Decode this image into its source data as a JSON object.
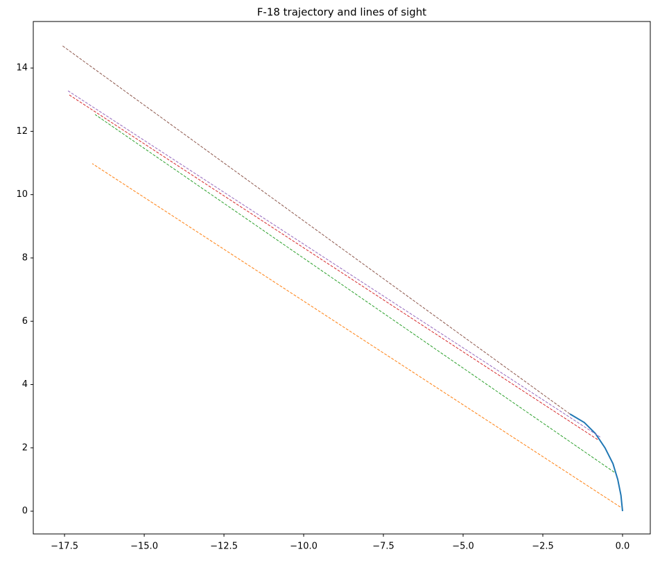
{
  "chart_data": {
    "type": "line",
    "title": "F-18 trajectory and lines of sight",
    "xlim": [
      -18.48,
      0.87
    ],
    "ylim": [
      -0.72,
      15.47
    ],
    "xticks": [
      {
        "value": -17.5,
        "label": "−17.5"
      },
      {
        "value": -15,
        "label": "−15.0"
      },
      {
        "value": -12.5,
        "label": "−12.5"
      },
      {
        "value": -10,
        "label": "−10.0"
      },
      {
        "value": -7.5,
        "label": "−7.5"
      },
      {
        "value": -5,
        "label": "−5.0"
      },
      {
        "value": -2.5,
        "label": "−2.5"
      },
      {
        "value": 0,
        "label": "0.0"
      }
    ],
    "yticks": [
      0,
      2,
      4,
      6,
      8,
      10,
      12,
      14
    ],
    "series": [
      {
        "color": "#1f77b4",
        "dashed": false,
        "x": [
          0,
          -0.05,
          -0.15,
          -0.3,
          -0.55,
          -0.85,
          -1.2,
          -1.65
        ],
        "values": [
          0,
          0.5,
          1.0,
          1.5,
          2.0,
          2.45,
          2.8,
          3.07
        ]
      },
      {
        "color": "#ff7f0e",
        "dashed": true,
        "x": [
          -0.07,
          -16.63
        ],
        "values": [
          0.13,
          10.98
        ]
      },
      {
        "color": "#2ca02c",
        "dashed": true,
        "x": [
          -0.26,
          -16.54
        ],
        "values": [
          1.23,
          12.53
        ]
      },
      {
        "color": "#d62728",
        "dashed": true,
        "x": [
          -0.78,
          -17.35
        ],
        "values": [
          2.26,
          13.15
        ]
      },
      {
        "color": "#9467bd",
        "dashed": true,
        "x": [
          -0.7,
          -17.39
        ],
        "values": [
          2.34,
          13.28
        ]
      },
      {
        "color": "#8c564b",
        "dashed": true,
        "x": [
          -1.65,
          -17.59
        ],
        "values": [
          3.07,
          14.72
        ]
      }
    ]
  }
}
